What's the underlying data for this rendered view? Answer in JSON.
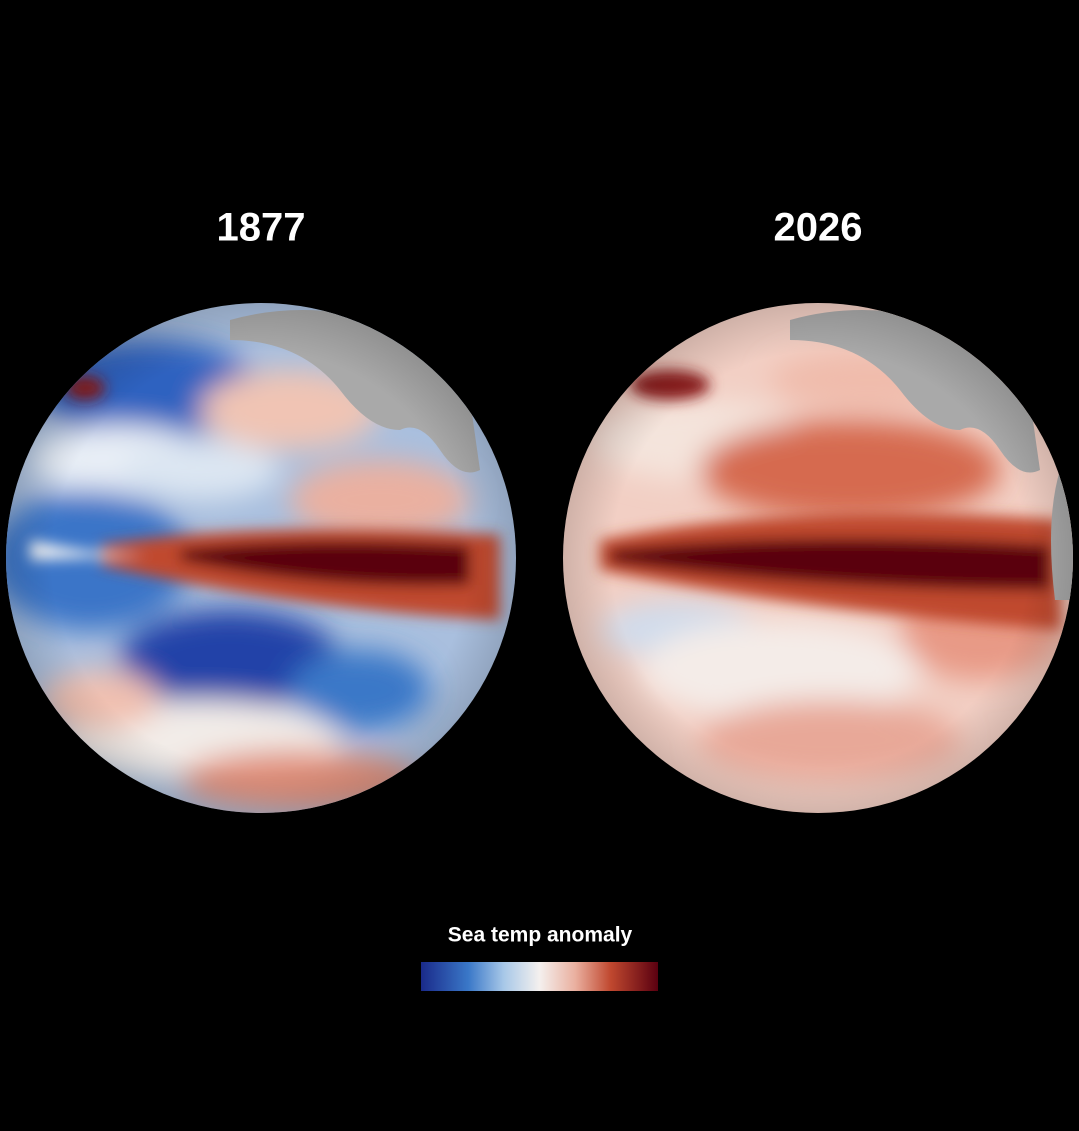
{
  "maps": [
    {
      "title": "1877"
    },
    {
      "title": "2026"
    }
  ],
  "legend": {
    "title": "Sea temp anomaly"
  }
}
